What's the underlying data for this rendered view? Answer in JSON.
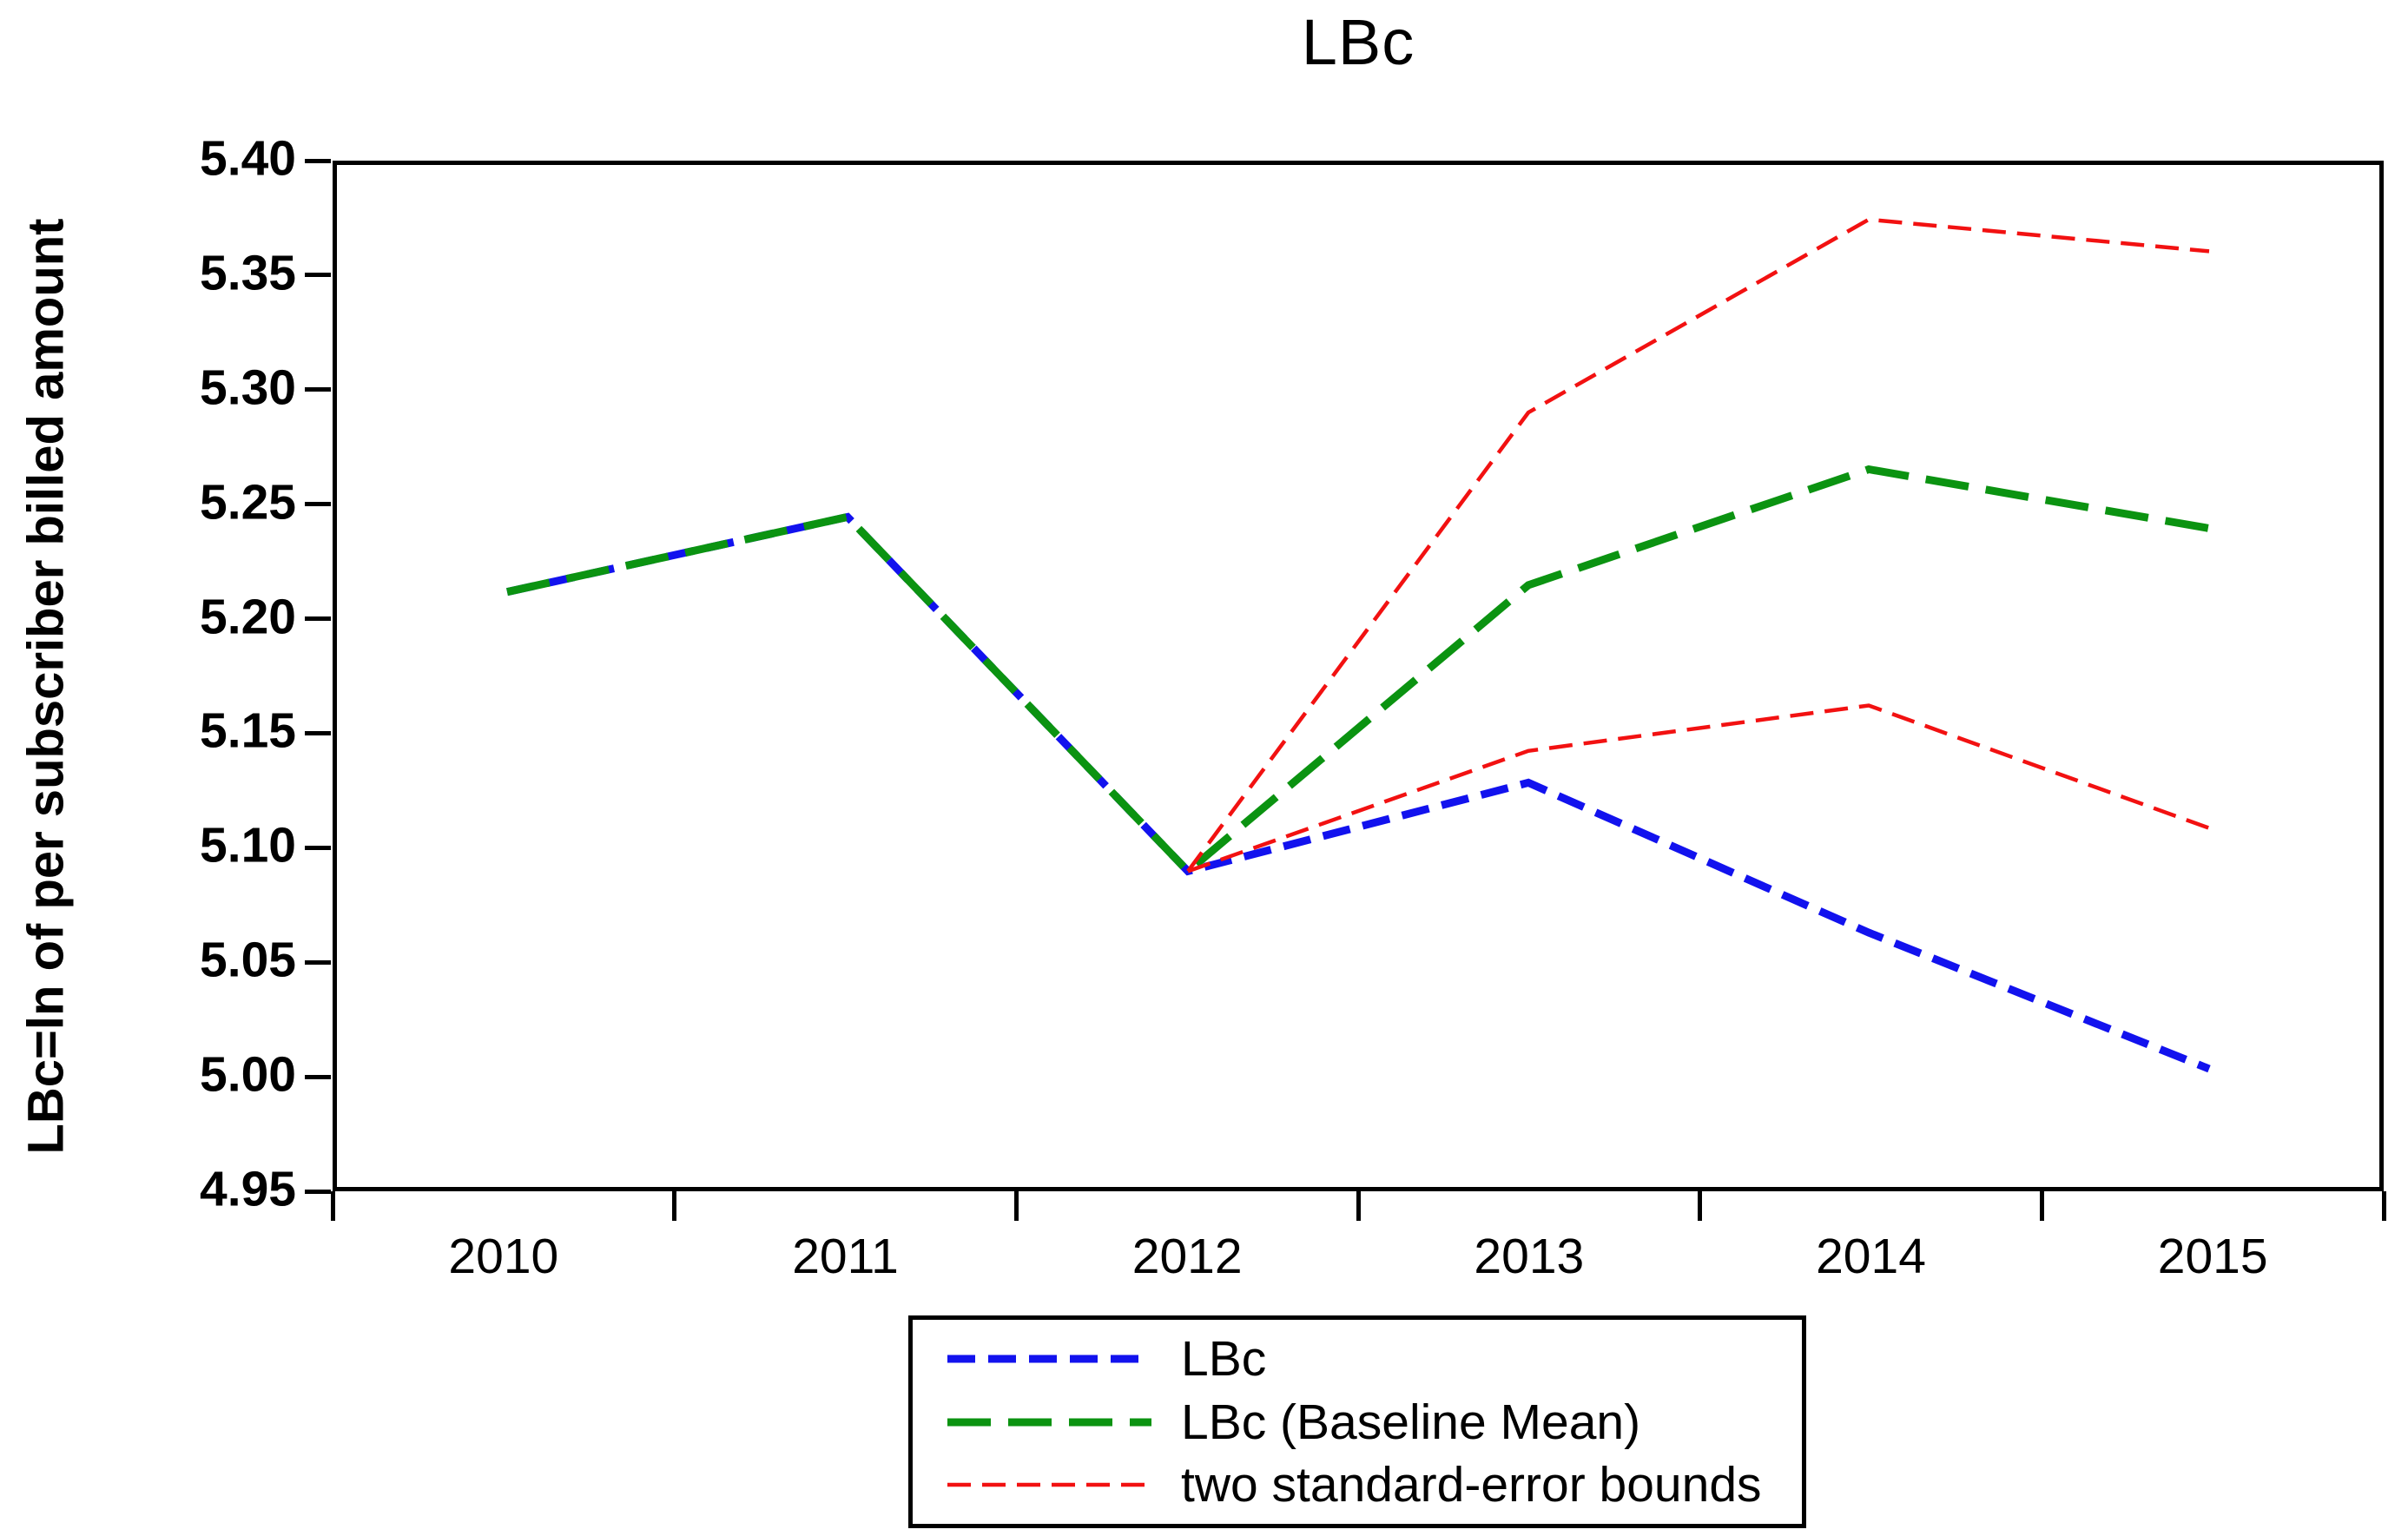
{
  "title": "LBc",
  "y_axis_title": "LBc=ln of per subscriber billed amount",
  "frame_color": "#000000",
  "chart_data": {
    "type": "line",
    "title": "LBc",
    "xlabel": "",
    "ylabel": "LBc=ln of per subscriber billed amount",
    "categories": [
      "2010",
      "2011",
      "2012",
      "2013",
      "2014",
      "2015"
    ],
    "ylim": [
      4.95,
      5.4
    ],
    "y_tick_step": 0.05,
    "y_tick_labels": [
      "5.40",
      "5.35",
      "5.30",
      "5.25",
      "5.20",
      "5.15",
      "5.10",
      "5.05",
      "5.00",
      "4.95"
    ],
    "grid": "off",
    "legend_position": "bottom-center-boxed",
    "series": [
      {
        "name": "LBc",
        "color": "#1212EE",
        "width": 9,
        "dash": [
          32,
          15
        ],
        "values": [
          5.212,
          5.245,
          5.089,
          5.128,
          5.062,
          5.002
        ]
      },
      {
        "name": "LBc (Baseline Mean)",
        "color": "#0B9311",
        "width": 9,
        "dash": [
          50,
          20
        ],
        "values": [
          5.212,
          5.245,
          5.089,
          5.215,
          5.266,
          5.24
        ]
      },
      {
        "name": "two standard-error bounds (upper)",
        "color": "#F21111",
        "width": 4.5,
        "dash": [
          27,
          13
        ],
        "values": [
          null,
          null,
          5.089,
          5.291,
          5.376,
          5.362
        ]
      },
      {
        "name": "two standard-error bounds (lower)",
        "color": "#F21111",
        "width": 4.5,
        "dash": [
          27,
          13
        ],
        "values": [
          null,
          null,
          5.089,
          5.142,
          5.162,
          5.108
        ]
      }
    ],
    "legend_entries": [
      {
        "label": "LBc",
        "color": "#1212EE",
        "width": 9,
        "dash": [
          32,
          15
        ]
      },
      {
        "label": "LBc (Baseline Mean)",
        "color": "#0B9311",
        "width": 9,
        "dash": [
          50,
          20
        ]
      },
      {
        "label": "two standard-error bounds",
        "color": "#F21111",
        "width": 4.5,
        "dash": [
          27,
          13
        ]
      }
    ]
  },
  "geometry_note": "plot frame 383,185 to 2745,1372"
}
